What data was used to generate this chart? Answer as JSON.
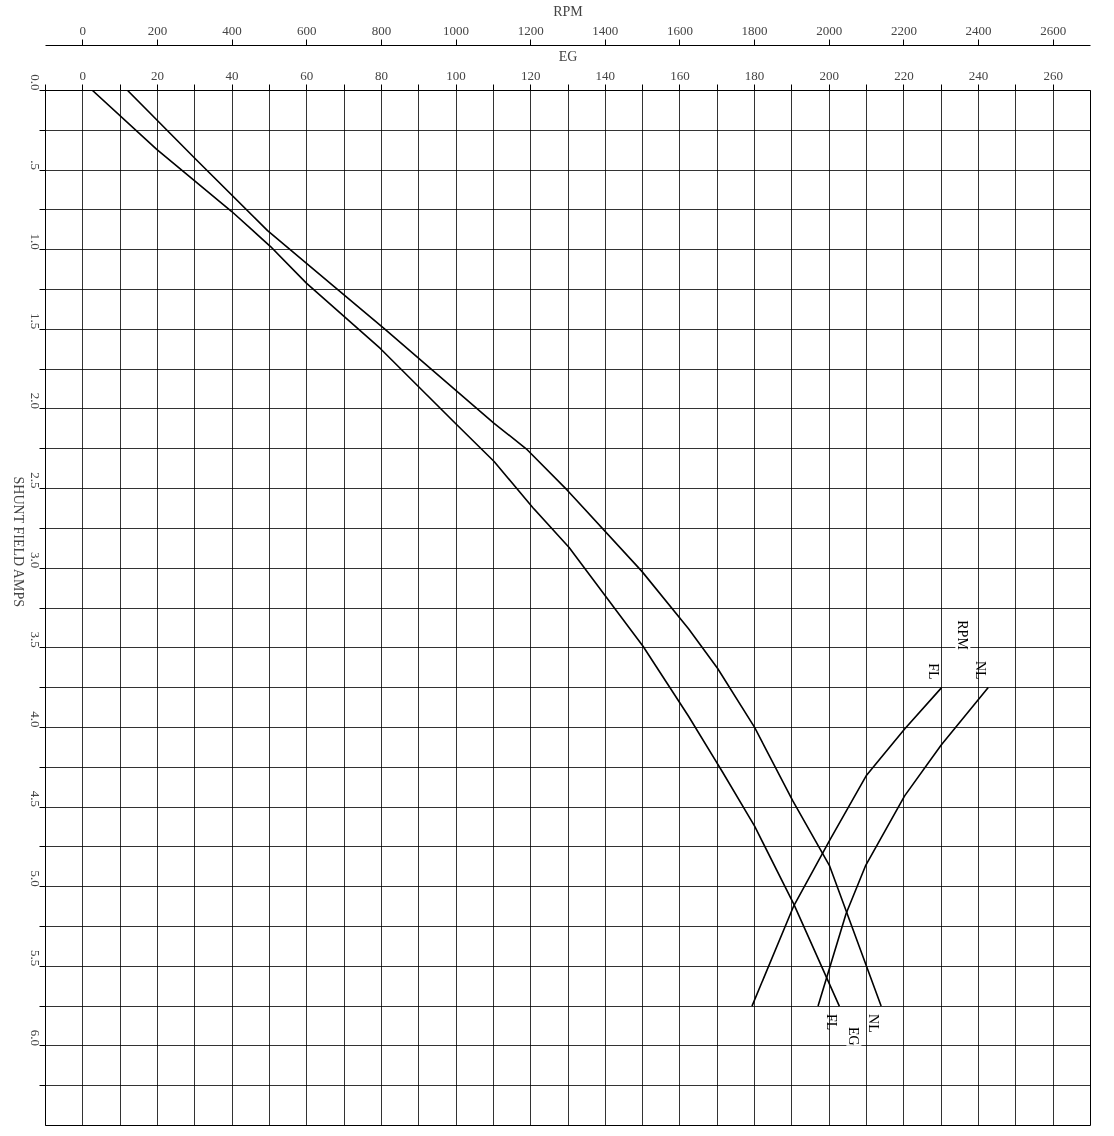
{
  "chart_data": {
    "type": "line",
    "xlabel": "EG",
    "x2label": "RPM",
    "ylabel": "SHUNT FIELD AMPS",
    "xlim": [
      -10,
      270
    ],
    "x2lim": [
      -100,
      2700
    ],
    "ylim": [
      6.5,
      0
    ],
    "xticks": [
      {
        "value": -10,
        "label": null
      },
      0,
      {
        "value": 10,
        "label": null
      },
      20,
      {
        "value": 30,
        "label": null
      },
      40,
      {
        "value": 50,
        "label": null
      },
      60,
      {
        "value": 70,
        "label": null
      },
      80,
      {
        "value": 90,
        "label": null
      },
      100,
      {
        "value": 110,
        "label": null
      },
      120,
      {
        "value": 130,
        "label": null
      },
      140,
      {
        "value": 150,
        "label": null
      },
      160,
      {
        "value": 170,
        "label": null
      },
      180,
      {
        "value": 190,
        "label": null
      },
      200,
      {
        "value": 210,
        "label": null
      },
      220,
      {
        "value": 230,
        "label": null
      },
      240,
      {
        "value": 250,
        "label": null
      },
      260
    ],
    "x2ticks": [
      0,
      200,
      400,
      600,
      800,
      1000,
      1200,
      1400,
      1600,
      1800,
      2000,
      2200,
      2400,
      2600
    ],
    "yticks": [
      {
        "value": 0,
        "label": "0.0"
      },
      {
        "value": 0.25,
        "label": null
      },
      {
        "value": 0.5,
        "label": ".5"
      },
      {
        "value": 0.75,
        "label": null
      },
      {
        "value": 1,
        "label": "1.0"
      },
      {
        "value": 1.25,
        "label": null
      },
      {
        "value": 1.5,
        "label": "1.5"
      },
      {
        "value": 1.75,
        "label": null
      },
      {
        "value": 2,
        "label": "2.0"
      },
      {
        "value": 2.25,
        "label": null
      },
      {
        "value": 2.5,
        "label": "2.5"
      },
      {
        "value": 2.75,
        "label": null
      },
      {
        "value": 3,
        "label": "3.0"
      },
      {
        "value": 3.25,
        "label": null
      },
      {
        "value": 3.5,
        "label": "3.5"
      },
      {
        "value": 3.75,
        "label": null
      },
      {
        "value": 4,
        "label": "4.0"
      },
      {
        "value": 4.25,
        "label": null
      },
      {
        "value": 4.5,
        "label": "4.5"
      },
      {
        "value": 4.75,
        "label": null
      },
      {
        "value": 5,
        "label": "5.0"
      },
      {
        "value": 5.25,
        "label": null
      },
      {
        "value": 5.5,
        "label": "5.5"
      },
      {
        "value": 5.75,
        "label": null
      },
      {
        "value": 6,
        "label": "6.0"
      },
      {
        "value": 6.25,
        "label": null
      }
    ],
    "grid": true,
    "legend": false,
    "marker": "none",
    "line_style": "solid",
    "series": [
      {
        "name": "FL",
        "color": "#000000",
        "x": [
          2.6,
          19.8,
          39.9,
          50.3,
          59.9,
          79.7,
          99.8,
          110.2,
          120.6,
          130.3,
          150.1,
          162.3,
          171.4,
          180,
          190.5,
          202.7
        ],
        "values": [
          0,
          0.37,
          0.76,
          0.98,
          1.21,
          1.62,
          2.09,
          2.33,
          2.62,
          2.87,
          3.49,
          3.93,
          4.28,
          4.62,
          5.11,
          5.75
        ]
      },
      {
        "name": "NL",
        "color": "#000000",
        "x": [
          12,
          30.2,
          49.5,
          70.3,
          81,
          110.2,
          118.8,
          129.8,
          149.8,
          162.3,
          170.1,
          180,
          190.2,
          200.1,
          213.9
        ],
        "values": [
          0,
          0.43,
          0.88,
          1.29,
          1.5,
          2.09,
          2.25,
          2.51,
          3.02,
          3.38,
          3.63,
          4.0,
          4.46,
          4.87,
          5.75
        ]
      },
      {
        "name": "FL",
        "color": "#000000",
        "axis": "x2",
        "x": [
          1793,
          1905,
          2001,
          2100,
          2202,
          2301
        ],
        "values": [
          5.75,
          5.12,
          4.71,
          4.3,
          4.01,
          3.75
        ]
      },
      {
        "name": "NL",
        "color": "#000000",
        "axis": "x2",
        "x": [
          1970,
          2045,
          2097,
          2202,
          2300,
          2426
        ],
        "values": [
          5.75,
          5.17,
          4.87,
          4.43,
          4.11,
          3.75
        ]
      }
    ],
    "annotations": [
      {
        "text": "EG",
        "x": 206.6,
        "y": 5.94
      },
      {
        "text": "RPM",
        "x": 235.8,
        "y": 3.42
      }
    ]
  }
}
